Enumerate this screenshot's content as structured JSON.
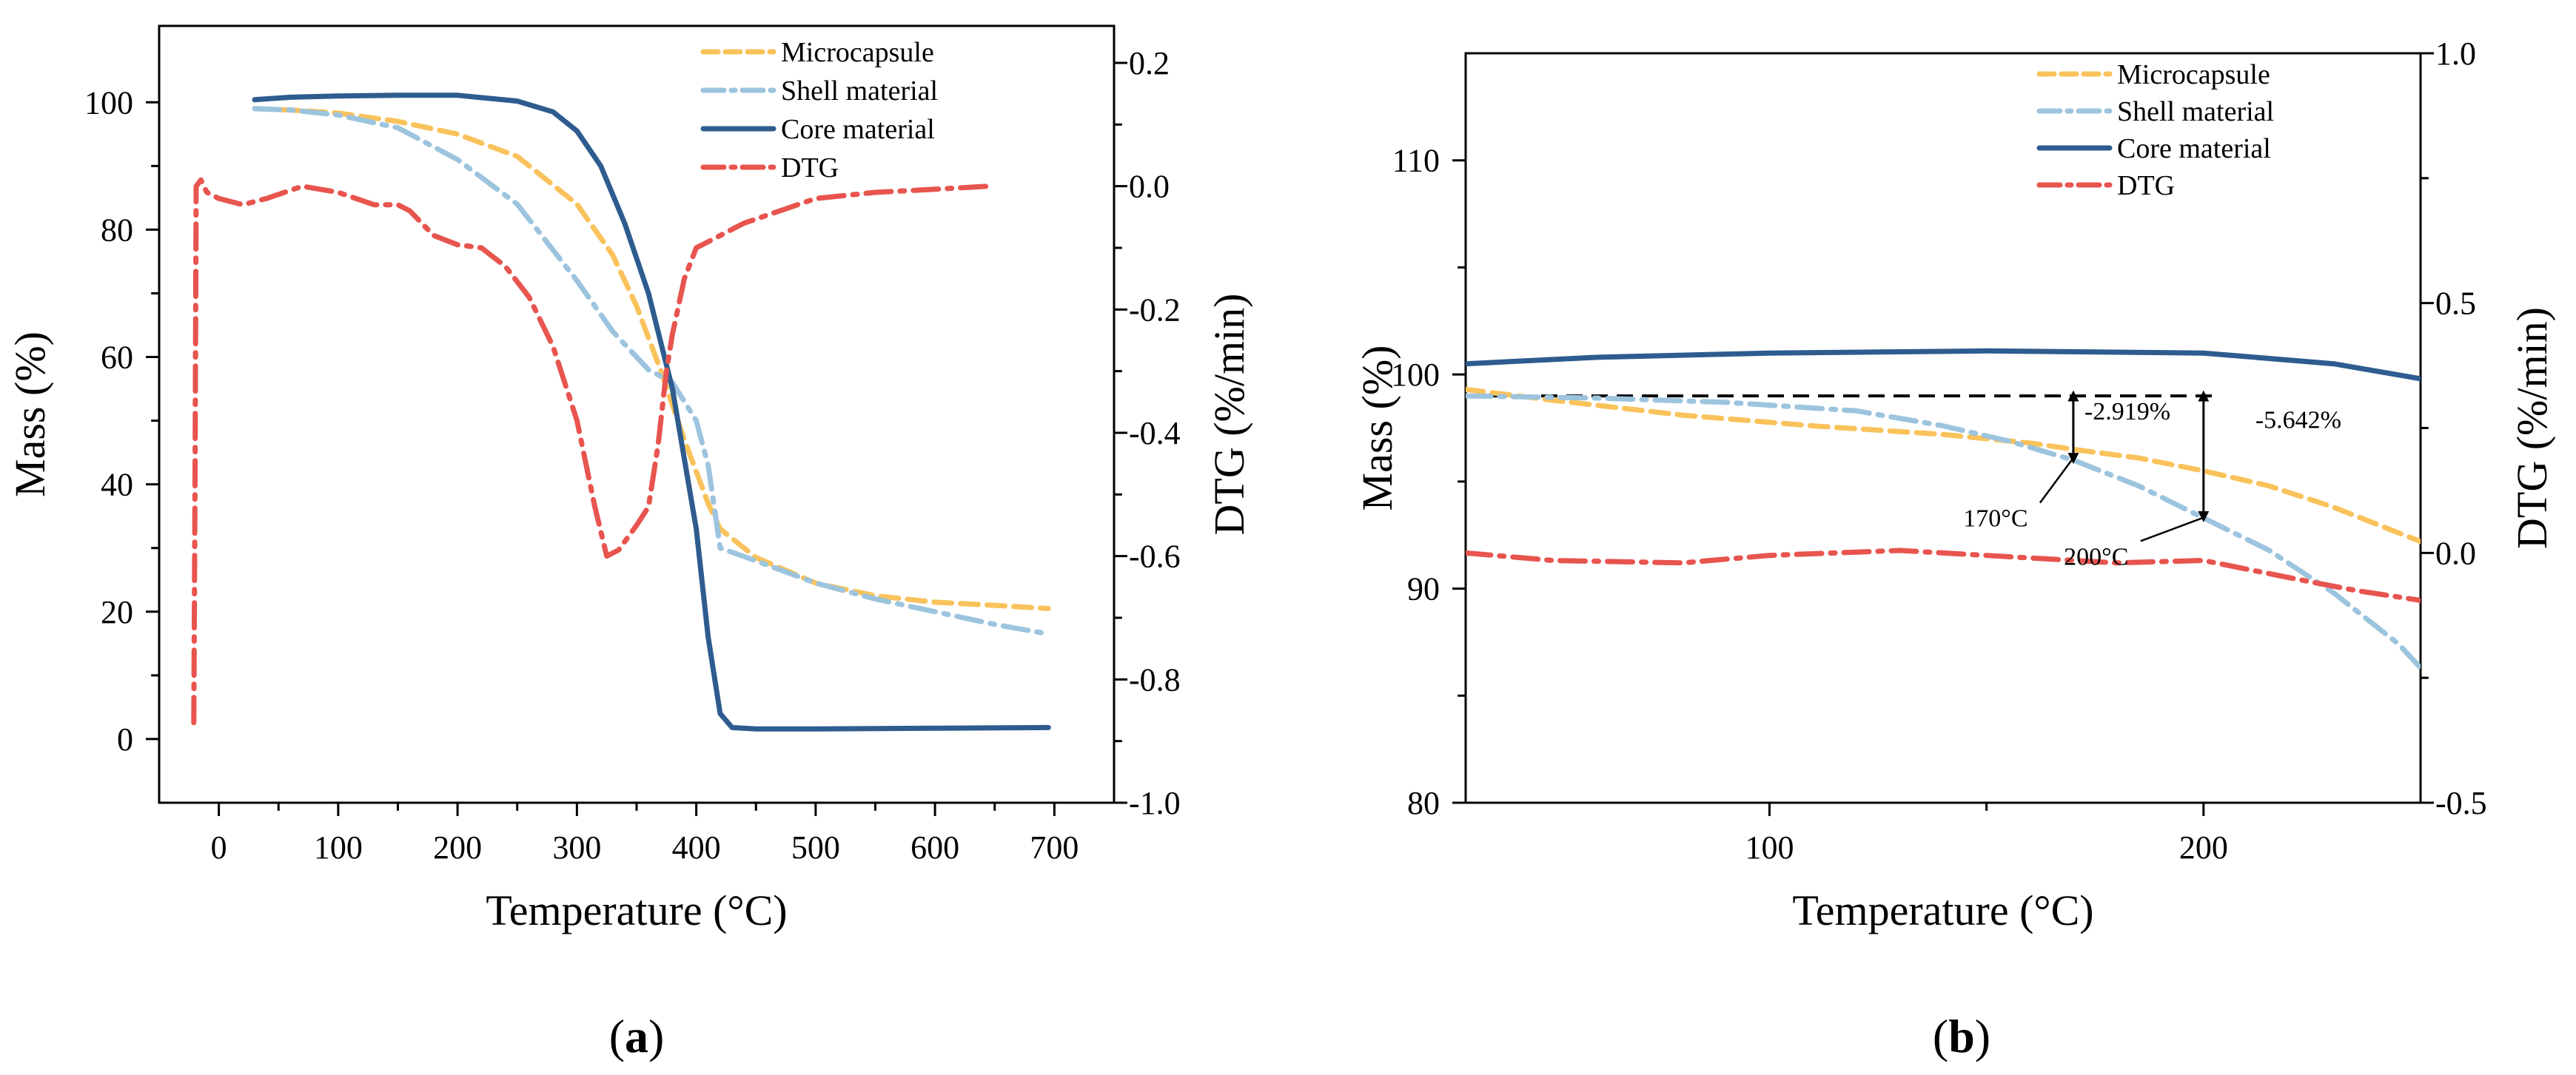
{
  "colors": {
    "microcapsule": "#F9C25B",
    "shell": "#9CC4DE",
    "core": "#2E5C8F",
    "dtg": "#E8544E",
    "axis": "#000000"
  },
  "panels": [
    {
      "id": "a",
      "label": "a"
    },
    {
      "id": "b",
      "label": "b"
    }
  ],
  "chart_data": [
    {
      "panel": "a",
      "type": "line",
      "xlabel": "Temperature (°C)",
      "ylabel": "Mass (%)",
      "y2label": "DTG (%/min)",
      "xlim": [
        -50,
        750
      ],
      "ylim": [
        -10,
        112
      ],
      "y2lim": [
        -1.0,
        0.26
      ],
      "xticks": [
        0,
        100,
        200,
        300,
        400,
        500,
        600,
        700
      ],
      "yticks": [
        0,
        20,
        40,
        60,
        80,
        100
      ],
      "y2ticks": [
        -1.0,
        -0.8,
        -0.6,
        -0.4,
        -0.2,
        0.0,
        0.2
      ],
      "legend_position": "top-right",
      "series": [
        {
          "name": "Microcapsule",
          "key": "microcapsule",
          "axis": "y",
          "style": "dash",
          "x": [
            30,
            60,
            100,
            150,
            200,
            250,
            300,
            330,
            350,
            370,
            390,
            410,
            420,
            450,
            500,
            550,
            600,
            650,
            695
          ],
          "y": [
            99,
            98.8,
            98.3,
            97,
            95,
            91.5,
            84,
            76,
            68,
            58,
            47,
            37,
            33,
            28.5,
            24.5,
            22.5,
            21.5,
            21,
            20.5
          ]
        },
        {
          "name": "Shell material",
          "key": "shell",
          "axis": "y",
          "style": "dashdot",
          "x": [
            30,
            60,
            100,
            150,
            200,
            250,
            300,
            330,
            360,
            380,
            400,
            410,
            420,
            450,
            500,
            550,
            600,
            650,
            695
          ],
          "y": [
            99,
            98.8,
            98,
            96,
            91,
            84,
            72,
            64,
            58,
            56,
            50,
            43,
            30,
            28,
            24.5,
            22,
            20,
            18,
            16.5
          ]
        },
        {
          "name": "Core material",
          "key": "core",
          "axis": "y",
          "style": "solid",
          "x": [
            30,
            60,
            100,
            150,
            200,
            250,
            280,
            300,
            320,
            340,
            360,
            380,
            400,
            410,
            420,
            430,
            450,
            500,
            600,
            695
          ],
          "y": [
            100.4,
            100.8,
            101,
            101.1,
            101.1,
            100.2,
            98.5,
            95.5,
            90,
            81,
            70,
            55,
            33,
            16,
            4,
            1.8,
            1.6,
            1.6,
            1.7,
            1.8
          ]
        },
        {
          "name": "DTG",
          "key": "dtg",
          "axis": "y2",
          "style": "dashdot",
          "x": [
            -21,
            -20,
            -19,
            -15,
            -10,
            0,
            20,
            40,
            70,
            100,
            130,
            150,
            160,
            180,
            200,
            220,
            240,
            260,
            280,
            300,
            315,
            325,
            335,
            350,
            360,
            368,
            375,
            380,
            390,
            400,
            420,
            440,
            470,
            500,
            550,
            600,
            645
          ],
          "y": [
            -0.87,
            -0.5,
            0.0,
            0.01,
            -0.01,
            -0.02,
            -0.03,
            -0.02,
            0.0,
            -0.01,
            -0.03,
            -0.03,
            -0.04,
            -0.08,
            -0.095,
            -0.1,
            -0.13,
            -0.18,
            -0.26,
            -0.38,
            -0.52,
            -0.6,
            -0.59,
            -0.55,
            -0.52,
            -0.42,
            -0.3,
            -0.24,
            -0.15,
            -0.1,
            -0.08,
            -0.06,
            -0.04,
            -0.02,
            -0.01,
            -0.005,
            0.0
          ]
        }
      ]
    },
    {
      "panel": "b",
      "type": "line",
      "xlabel": "Temperature (°C)",
      "ylabel": "Mass (%)",
      "y2label": "DTG (%/min)",
      "xlim": [
        30,
        250
      ],
      "ylim": [
        80,
        115
      ],
      "y2lim": [
        -0.5,
        1.0
      ],
      "xticks": [
        100,
        200
      ],
      "yticks": [
        80,
        90,
        100,
        110
      ],
      "y2ticks": [
        -0.5,
        0.0,
        0.5,
        1.0
      ],
      "legend_position": "top-right",
      "series": [
        {
          "name": "Microcapsule",
          "key": "microcapsule",
          "axis": "y",
          "style": "dash",
          "x": [
            30,
            50,
            80,
            110,
            140,
            160,
            170,
            185,
            200,
            215,
            230,
            250
          ],
          "y": [
            99.3,
            98.8,
            98.1,
            97.6,
            97.2,
            96.8,
            96.5,
            96.1,
            95.5,
            94.8,
            93.8,
            92.2
          ]
        },
        {
          "name": "Shell material",
          "key": "shell",
          "axis": "y",
          "style": "dashdot",
          "x": [
            30,
            60,
            90,
            120,
            140,
            155,
            170,
            185,
            200,
            215,
            230,
            245,
            250
          ],
          "y": [
            99,
            98.9,
            98.7,
            98.3,
            97.6,
            96.9,
            96,
            94.8,
            93.3,
            91.8,
            89.8,
            87.4,
            86.3
          ]
        },
        {
          "name": "Core material",
          "key": "core",
          "axis": "y",
          "style": "solid",
          "x": [
            30,
            60,
            100,
            150,
            200,
            230,
            250
          ],
          "y": [
            100.5,
            100.8,
            101,
            101.1,
            101,
            100.5,
            99.8
          ]
        },
        {
          "name": "DTG",
          "key": "dtg",
          "axis": "y2",
          "style": "dashdot",
          "x": [
            30,
            50,
            80,
            100,
            130,
            160,
            180,
            200,
            220,
            235,
            250
          ],
          "y": [
            0.0,
            -0.015,
            -0.02,
            -0.005,
            0.005,
            -0.01,
            -0.02,
            -0.015,
            -0.05,
            -0.075,
            -0.095
          ]
        }
      ],
      "reference_line": {
        "y": 99
      },
      "annotations": [
        {
          "key": "ann-2919",
          "text": "-2.919%",
          "x": 170,
          "y_top": 99,
          "y_bottom": 96.08
        },
        {
          "key": "ann-5642",
          "text": "-5.642%",
          "x": 200,
          "y_top": 99,
          "y_bottom": 93.36
        },
        {
          "key": "ann-170c",
          "text": "170°C",
          "x": 170,
          "y": 96.08
        },
        {
          "key": "ann-200c",
          "text": "200°C",
          "x": 200,
          "y": 93.36
        }
      ]
    }
  ]
}
